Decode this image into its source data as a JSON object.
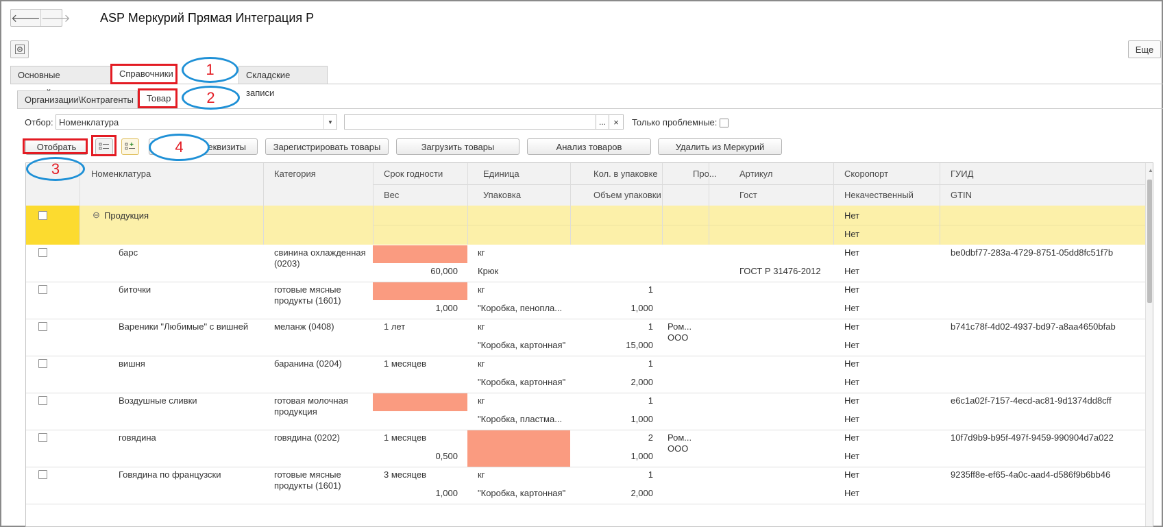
{
  "window": {
    "title": "ASP Меркурий Прямая Интеграция Р",
    "back_glyph": "🡐",
    "forward_glyph": "🡒",
    "more_label": "Еще"
  },
  "tabs_main": [
    {
      "label": "Основные настройки"
    },
    {
      "label": "Справочники"
    },
    {
      "label": "Складские записи"
    }
  ],
  "tabs_sub": [
    {
      "label": "Организации\\Контрагенты"
    },
    {
      "label": "Товар"
    }
  ],
  "filter": {
    "label": "Отбор:",
    "field_value": "Номенклатура",
    "value_text": "",
    "dots": "...",
    "clear": "×",
    "problem_label": "Только проблемные:"
  },
  "toolbar": {
    "select_label": "Отобрать",
    "requisites_label": "еквизиты",
    "register_label": "Зарегистрировать товары",
    "load_label": "Загрузить товары",
    "analyze_label": "Анализ товаров",
    "delete_label": "Удалить из Меркурий"
  },
  "annotations": [
    "1",
    "2",
    "3",
    "4"
  ],
  "columns": {
    "row1": [
      "Номенклатура",
      "Категория",
      "Срок годности",
      "Единица",
      "Кол. в упаковке",
      "Про...",
      "Артикул",
      "Скоропорт",
      "ГУИД"
    ],
    "row2": [
      "Вес",
      "Упаковка",
      "Объем упаковки",
      "Гост",
      "Некачественный",
      "GTIN"
    ]
  },
  "group": {
    "name": "Продукция",
    "toggle": "⊖",
    "skoroport": "Нет",
    "nekach": "Нет"
  },
  "rows": [
    {
      "name": "барс",
      "category": "свинина охлажденная (0203)",
      "shelf": "",
      "shelf_highlight": true,
      "weight": "60,000",
      "unit": "кг",
      "pack": "Крюк",
      "unit_highlight": false,
      "qty": "",
      "volume": "",
      "producer": "",
      "article": "",
      "gost": "ГОСТ Р 31476-2012",
      "skoroport": "Нет",
      "nekach": "Нет",
      "guid": "be0dbf77-283a-4729-8751-05dd8fc51f7b",
      "gtin": ""
    },
    {
      "name": "биточки",
      "category": "готовые мясные продукты (1601)",
      "shelf": "",
      "shelf_highlight": true,
      "weight": "1,000",
      "unit": "кг",
      "pack": "\"Коробка, пенопла...",
      "unit_highlight": false,
      "qty": "1",
      "volume": "1,000",
      "producer": "",
      "article": "",
      "gost": "",
      "skoroport": "Нет",
      "nekach": "Нет",
      "guid": "",
      "gtin": ""
    },
    {
      "name": "Вареники \"Любимые\" с вишней",
      "category": "меланж (0408)",
      "shelf": "1 лет",
      "shelf_highlight": false,
      "weight": "",
      "unit": "кг",
      "pack": "\"Коробка, картонная\"",
      "unit_highlight": false,
      "qty": "1",
      "volume": "15,000",
      "producer": "Ром... ООО",
      "article": "",
      "gost": "",
      "skoroport": "Нет",
      "nekach": "Нет",
      "guid": "b741c78f-4d02-4937-bd97-a8aa4650bfab",
      "gtin": ""
    },
    {
      "name": "вишня",
      "category": "баранина (0204)",
      "shelf": "1 месяцев",
      "shelf_highlight": false,
      "weight": "",
      "unit": "кг",
      "pack": "\"Коробка, картонная\"",
      "unit_highlight": false,
      "qty": "1",
      "volume": "2,000",
      "producer": "",
      "article": "",
      "gost": "",
      "skoroport": "Нет",
      "nekach": "Нет",
      "guid": "",
      "gtin": ""
    },
    {
      "name": "Воздушные сливки",
      "category": "готовая молочная продукция",
      "shelf": "",
      "shelf_highlight": true,
      "weight": "",
      "unit": "кг",
      "pack": "\"Коробка, пластма...",
      "unit_highlight": false,
      "qty": "1",
      "volume": "1,000",
      "producer": "",
      "article": "",
      "gost": "",
      "skoroport": "Нет",
      "nekach": "Нет",
      "guid": "e6c1a02f-7157-4ecd-ac81-9d1374dd8cff",
      "gtin": ""
    },
    {
      "name": "говядина",
      "category": "говядина (0202)",
      "shelf": "1 месяцев",
      "shelf_highlight": false,
      "weight": "0,500",
      "unit": "",
      "pack": "",
      "unit_highlight": true,
      "qty": "2",
      "volume": "1,000",
      "producer": "Ром... ООО",
      "article": "",
      "gost": "",
      "skoroport": "Нет",
      "nekach": "Нет",
      "guid": "10f7d9b9-b95f-497f-9459-990904d7a022",
      "gtin": ""
    },
    {
      "name": "Говядина по французски",
      "category": "готовые мясные продукты (1601)",
      "shelf": "3 месяцев",
      "shelf_highlight": false,
      "weight": "1,000",
      "unit": "кг",
      "pack": "\"Коробка, картонная\"",
      "unit_highlight": false,
      "qty": "1",
      "volume": "2,000",
      "producer": "",
      "article": "",
      "gost": "",
      "skoroport": "Нет",
      "nekach": "Нет",
      "guid": "9235ff8e-ef65-4a0c-aad4-d586f9b6bb46",
      "gtin": ""
    }
  ],
  "colors": {
    "annotation_red": "#e31b23",
    "annotation_blue": "#1e90d6",
    "group_band": "#fcf0a9",
    "group_left": "#fcdb2f",
    "highlight_cell": "#fa9b80"
  }
}
